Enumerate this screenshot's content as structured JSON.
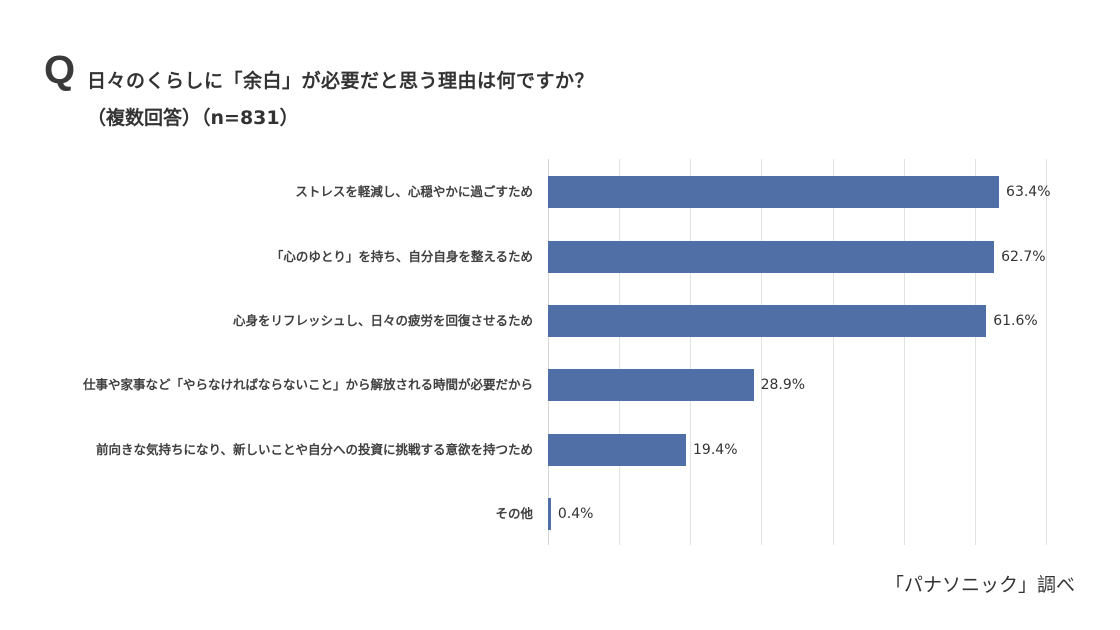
{
  "header": {
    "q_mark": "Q",
    "title": "日々のくらしに「余白」が必要だと思う理由は何ですか？",
    "subtitle": "（複数回答）（n=831）"
  },
  "source": "「パナソニック」調べ",
  "colors": {
    "bar": "#4f6fa6",
    "grid": "#e2e2e2",
    "text": "#333333"
  },
  "chart_data": {
    "type": "bar",
    "orientation": "horizontal",
    "title": "日々のくらしに「余白」が必要だと思う理由は何ですか？（複数回答）（n=831）",
    "xlabel": "",
    "ylabel": "",
    "xlim": [
      0,
      70
    ],
    "grid": true,
    "grid_step": 10,
    "legend": null,
    "categories": [
      "ストレスを軽減し、心穏やかに過ごすため",
      "「心のゆとり」を持ち、自分自身を整えるため",
      "心身をリフレッシュし、日々の疲労を回復させるため",
      "仕事や家事など「やらなければならないこと」から解放される時間が必要だから",
      "前向きな気持ちになり、新しいことや自分への投資に挑戦する意欲を持つため",
      "その他"
    ],
    "values": [
      63.4,
      62.7,
      61.6,
      28.9,
      19.4,
      0.4
    ],
    "value_labels": [
      "63.4%",
      "62.7%",
      "61.6%",
      "28.9%",
      "19.4%",
      "0.4%"
    ]
  }
}
